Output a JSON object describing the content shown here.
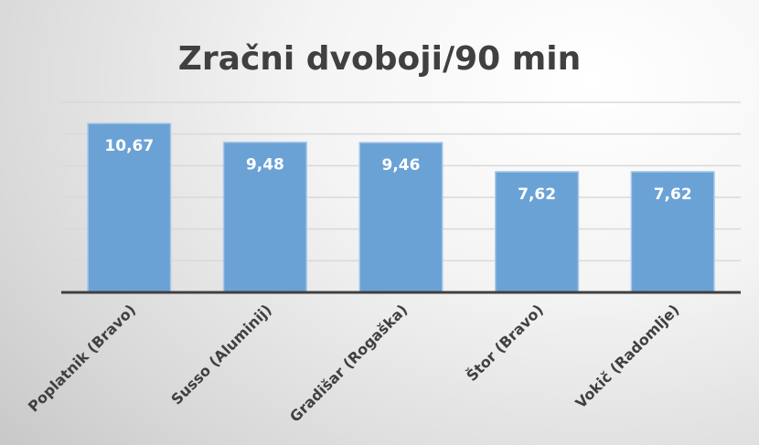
{
  "chart_data": {
    "type": "bar",
    "title": "Zračni dvoboji/90 min",
    "categories": [
      "Poplatnik (Bravo)",
      "Susso (Aluminij)",
      "Gradišar (Rogaška)",
      "Štor (Bravo)",
      "Vokič (Radomlje)"
    ],
    "values": [
      10.67,
      9.48,
      9.46,
      7.62,
      7.62
    ],
    "data_labels": [
      "10,67",
      "9,48",
      "9,46",
      "7,62",
      "7,62"
    ],
    "xlabel": "",
    "ylabel": "",
    "ylim": [
      0,
      12
    ],
    "ytick_step": 2,
    "y_axis_labels_shown": false,
    "grid": true,
    "bar_color": "#6aa2d6",
    "bar_edge_color": "#a9c8e8"
  }
}
